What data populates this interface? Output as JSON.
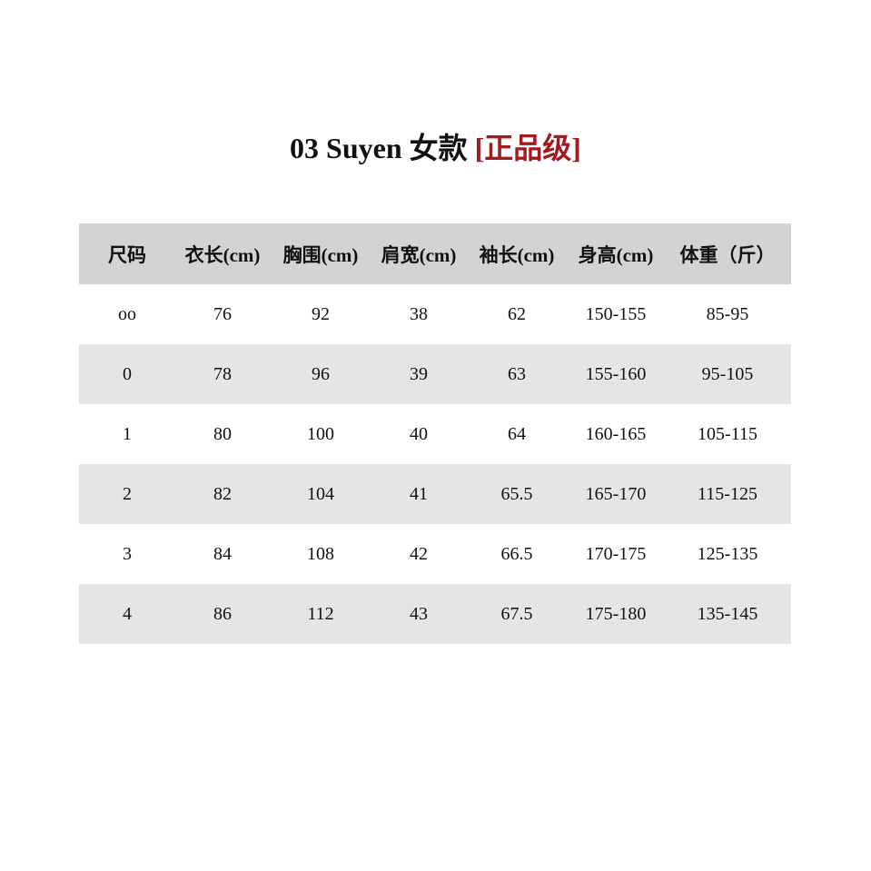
{
  "title": {
    "main": "03 Suyen 女款",
    "highlight": "[正品级]",
    "highlight_color": "#a31a1f"
  },
  "table": {
    "headers": [
      "尺码",
      "衣长(cm)",
      "胸围(cm)",
      "肩宽(cm)",
      "袖长(cm)",
      "身高(cm)",
      "体重（斤）"
    ],
    "rows": [
      [
        "oo",
        "76",
        "92",
        "38",
        "62",
        "150-155",
        "85-95"
      ],
      [
        "0",
        "78",
        "96",
        "39",
        "63",
        "155-160",
        "95-105"
      ],
      [
        "1",
        "80",
        "100",
        "40",
        "64",
        "160-165",
        "105-115"
      ],
      [
        "2",
        "82",
        "104",
        "41",
        "65.5",
        "165-170",
        "115-125"
      ],
      [
        "3",
        "84",
        "108",
        "42",
        "66.5",
        "170-175",
        "125-135"
      ],
      [
        "4",
        "86",
        "112",
        "43",
        "67.5",
        "175-180",
        "135-145"
      ]
    ]
  }
}
